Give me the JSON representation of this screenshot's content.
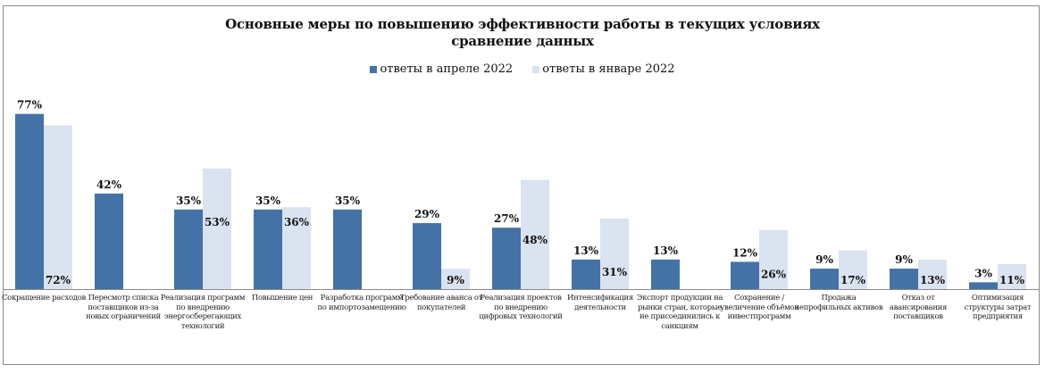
{
  "chart_data": {
    "type": "bar",
    "title": "Основные меры по повышению эффективности работы в текущих условиях",
    "subtitle": "сравнение данных",
    "xlabel": "",
    "ylabel": "",
    "ylim": [
      0,
      80
    ],
    "grid": false,
    "legend_position": "top-center",
    "value_suffix": "%",
    "categories": [
      "Сокращение расходов",
      "Пересмотр списка поставщиков из-за новых ограничений",
      "Реализация программ по внедрению энергосберегающих технологий",
      "Повышение цен",
      "Разработка программ по импортозамещению",
      "Требование аванса от покупателей",
      "Реализация проектов по внедрению цифровых технологий",
      "Интенсификация деятельности",
      "Экспорт продукции на рынки стран, которые не присоединились к санкциям",
      "Сохранение / увеличение объёмов инвестпрограмм",
      "Продажа непрофильных активов",
      "Отказ от авансирования поставщиков",
      "Оптимизация структуры затрат предприятия"
    ],
    "series": [
      {
        "name": "ответы в апреле 2022",
        "color": "#4472a6",
        "values": [
          77,
          42,
          35,
          35,
          35,
          29,
          27,
          13,
          13,
          12,
          9,
          9,
          3
        ]
      },
      {
        "name": "ответы в январе 2022",
        "color": "#dae3f0",
        "values": [
          72,
          null,
          53,
          36,
          null,
          9,
          48,
          31,
          null,
          26,
          17,
          13,
          11
        ]
      }
    ]
  }
}
